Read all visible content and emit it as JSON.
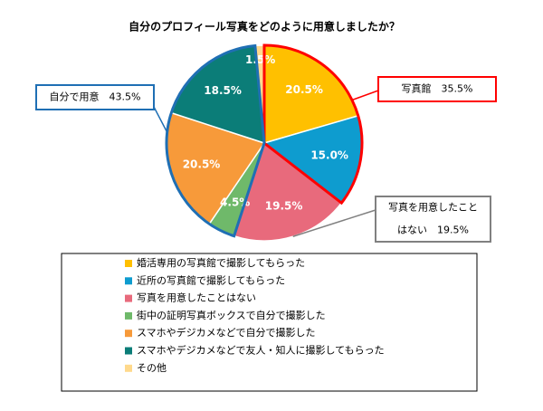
{
  "chart_data": {
    "type": "pie",
    "title": "自分のプロフィール写真をどのように用意しましたか？",
    "categories": [
      "婚活専用の写真館で撮影してもらった",
      "近所の写真館で撮影してもらった",
      "写真を用意したことはない",
      "街中の証明写真ボックスで自分で撮影した",
      "スマホやデジカメなどで自分で撮影した",
      "スマホやデジカメなどで友人・知人に撮影してもらった",
      "その他"
    ],
    "values": [
      20.5,
      15.0,
      19.5,
      4.5,
      20.5,
      18.5,
      1.5
    ],
    "value_labels": [
      "20.5%",
      "15.0%",
      "19.5%",
      "4.5%",
      "20.5%",
      "18.5%",
      "1.5%"
    ],
    "colors": [
      "#ffc000",
      "#0e9ccf",
      "#e86a7c",
      "#6fb96a",
      "#f79a3a",
      "#0b7d78",
      "#ffd98c"
    ],
    "annotations": [
      {
        "lines": [
          "写真館　35.5%"
        ],
        "border": "#ff0000",
        "slices": [
          0,
          1
        ],
        "outline": true
      },
      {
        "lines": [
          "写真を用意したこと",
          "はない　19.5%"
        ],
        "border": "#808080",
        "slices": [
          2
        ],
        "outline": false
      },
      {
        "lines": [
          "自分で用意　43.5%"
        ],
        "border": "#1f6fb4",
        "slices": [
          3,
          4,
          5
        ],
        "outline": true
      }
    ]
  }
}
